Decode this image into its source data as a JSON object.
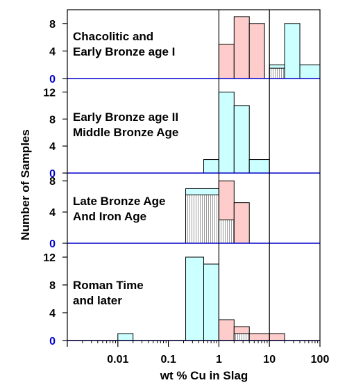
{
  "colors": {
    "cyan": "#ccffff",
    "pink": "#ffcccc",
    "gray_hatch": "#d9d9d9",
    "baseline": "#0000cc",
    "zero_label": "#0000cc",
    "frame": "#000000"
  },
  "chart_data": {
    "type": "bar",
    "subtype": "stacked-histogram-panels",
    "xlabel": "wt % Cu  in Slag",
    "ylabel": "Number of Samples",
    "xscale": "log",
    "xlim": [
      0.001,
      100
    ],
    "xticks": [
      {
        "value": 0.01,
        "label": "0.01"
      },
      {
        "value": 0.1,
        "label": "0.1"
      },
      {
        "value": 1,
        "label": "1"
      },
      {
        "value": 10,
        "label": "10"
      },
      {
        "value": 100,
        "label": "100"
      }
    ],
    "vertical_reference_lines": [
      1,
      10
    ],
    "grid": false,
    "panels": [
      {
        "label_lines": [
          "Chacolitic and",
          "Early Bronze age I"
        ],
        "ylim": [
          0,
          10
        ],
        "yticks": [
          {
            "value": 0,
            "label": "0"
          },
          {
            "value": 4,
            "label": "4"
          },
          {
            "value": 8,
            "label": "8"
          }
        ],
        "bars": [
          {
            "x0": 1,
            "x1": 2,
            "fill": "pink",
            "value": 5
          },
          {
            "x0": 2,
            "x1": 4,
            "fill": "pink",
            "value": 9
          },
          {
            "x0": 4,
            "x1": 8,
            "fill": "pink",
            "value": 8
          },
          {
            "x0": 10,
            "x1": 20,
            "fill": "cyan",
            "value": 2
          },
          {
            "x0": 10,
            "x1": 20,
            "fill": "gray",
            "value": 1.5
          },
          {
            "x0": 20,
            "x1": 40,
            "fill": "cyan",
            "value": 8
          },
          {
            "x0": 40,
            "x1": 100,
            "fill": "cyan",
            "value": 2
          }
        ]
      },
      {
        "label_lines": [
          "Early Bronze age II",
          "Middle Bronze Age"
        ],
        "ylim": [
          0,
          14
        ],
        "yticks": [
          {
            "value": 0,
            "label": "0"
          },
          {
            "value": 4,
            "label": "4"
          },
          {
            "value": 8,
            "label": "8"
          },
          {
            "value": 12,
            "label": "12"
          }
        ],
        "bars": [
          {
            "x0": 0.5,
            "x1": 1,
            "fill": "cyan",
            "value": 2
          },
          {
            "x0": 1,
            "x1": 2,
            "fill": "cyan",
            "value": 12
          },
          {
            "x0": 2,
            "x1": 4,
            "fill": "cyan",
            "value": 10
          },
          {
            "x0": 4,
            "x1": 10,
            "fill": "cyan",
            "value": 2
          }
        ]
      },
      {
        "label_lines": [
          "Late Bronze Age",
          "And Iron Age"
        ],
        "ylim": [
          0,
          9
        ],
        "yticks": [
          {
            "value": 0,
            "label": "0"
          },
          {
            "value": 4,
            "label": "4"
          },
          {
            "value": 8,
            "label": "8"
          }
        ],
        "bars": [
          {
            "x0": 0.22,
            "x1": 1,
            "fill": "cyan",
            "value": 7
          },
          {
            "x0": 0.22,
            "x1": 1,
            "fill": "gray",
            "value": 6.2
          },
          {
            "x0": 1,
            "x1": 2,
            "fill": "pink",
            "value": 8
          },
          {
            "x0": 1,
            "x1": 2,
            "fill": "gray",
            "value": 3
          },
          {
            "x0": 2,
            "x1": 4,
            "fill": "pink",
            "value": 5.2
          }
        ]
      },
      {
        "label_lines": [
          "Roman Time",
          "and later"
        ],
        "ylim": [
          0,
          14
        ],
        "yticks": [
          {
            "value": 0,
            "label": "0"
          },
          {
            "value": 4,
            "label": "4"
          },
          {
            "value": 8,
            "label": "8"
          },
          {
            "value": 12,
            "label": "12"
          }
        ],
        "bars": [
          {
            "x0": 0.01,
            "x1": 0.02,
            "fill": "cyan",
            "value": 1
          },
          {
            "x0": 0.22,
            "x1": 0.5,
            "fill": "cyan",
            "value": 12
          },
          {
            "x0": 0.5,
            "x1": 1,
            "fill": "cyan",
            "value": 11
          },
          {
            "x0": 1,
            "x1": 2,
            "fill": "pink",
            "value": 3
          },
          {
            "x0": 2,
            "x1": 4,
            "fill": "pink",
            "value": 2
          },
          {
            "x0": 2,
            "x1": 4,
            "fill": "gray",
            "value": 1
          },
          {
            "x0": 4,
            "x1": 10,
            "fill": "pink",
            "value": 1
          },
          {
            "x0": 10,
            "x1": 20,
            "fill": "pink",
            "value": 1
          }
        ]
      }
    ]
  }
}
